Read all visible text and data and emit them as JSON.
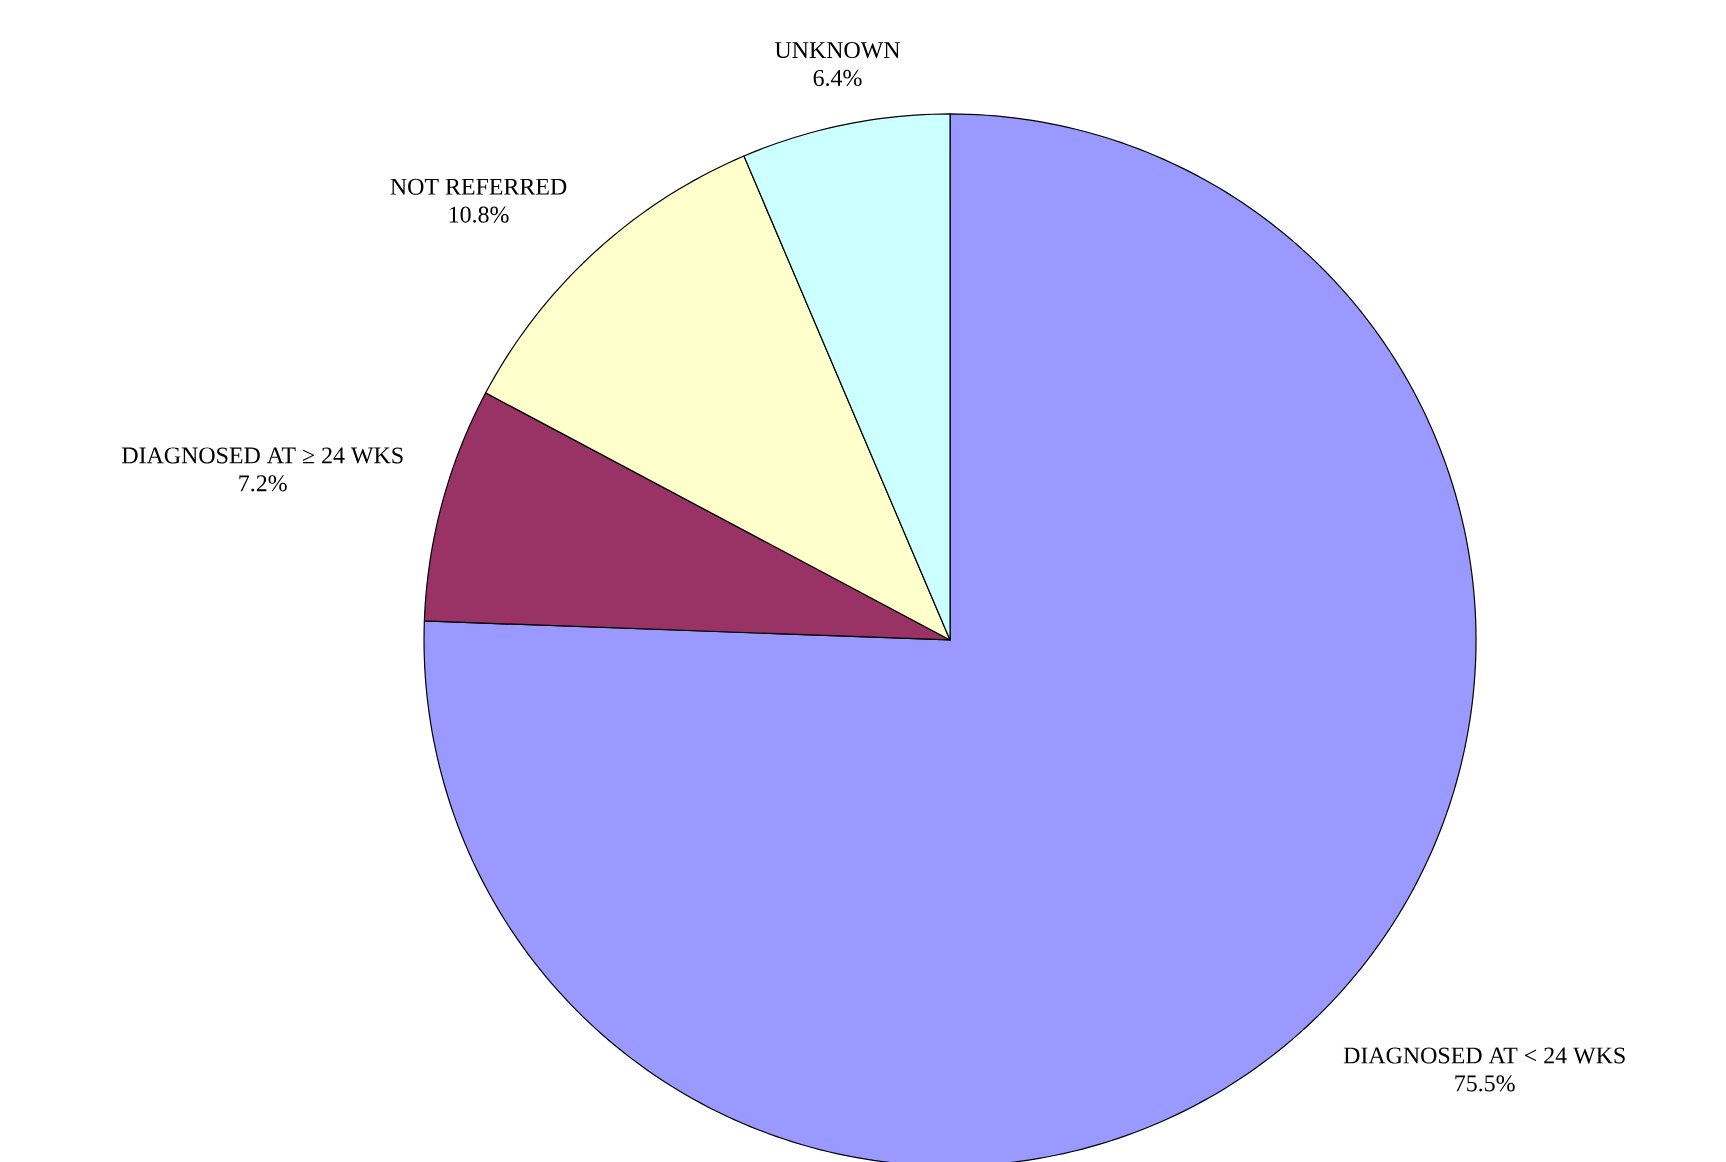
{
  "chart_data": {
    "type": "pie",
    "categories": [
      "DIAGNOSED AT < 24 WKS",
      "DIAGNOSED AT ≥ 24 WKS",
      "NOT REFERRED",
      "UNKNOWN"
    ],
    "values": [
      75.5,
      7.2,
      10.8,
      6.4
    ],
    "value_labels": [
      "75.5%",
      "7.2%",
      "10.8%",
      "6.4%"
    ],
    "colors": [
      "#9999ff",
      "#993366",
      "#ffffcc",
      "#ccffff"
    ]
  }
}
